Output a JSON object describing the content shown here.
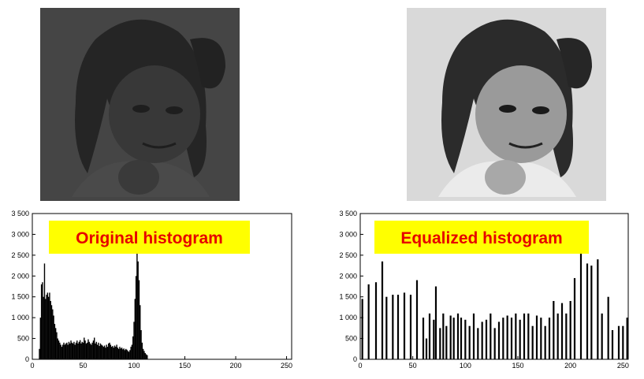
{
  "colors": {
    "background": "#ffffff",
    "title_text": "#e60000",
    "title_box": "#ffff00",
    "bars": "#000000",
    "original_photo_tone": "#3f3f3f",
    "equalized_photo_tone": "#8a8a8a"
  },
  "images": {
    "original": {
      "icon": "child-portrait-low-contrast"
    },
    "equalized": {
      "icon": "child-portrait-high-contrast"
    }
  },
  "chart_data": [
    {
      "type": "bar",
      "title": "Original histogram",
      "xlabel": "",
      "ylabel": "",
      "xlim": [
        0,
        255
      ],
      "ylim": [
        0,
        3500
      ],
      "xticks": [
        0,
        50,
        100,
        150,
        200,
        250
      ],
      "yticks": [
        0,
        500,
        1000,
        1500,
        2000,
        2500,
        3000,
        3500
      ],
      "grid": false,
      "x": [
        7,
        8,
        9,
        10,
        11,
        12,
        13,
        14,
        15,
        16,
        17,
        18,
        19,
        20,
        21,
        22,
        23,
        24,
        25,
        26,
        27,
        28,
        29,
        30,
        31,
        32,
        33,
        34,
        35,
        36,
        37,
        38,
        39,
        40,
        41,
        42,
        43,
        44,
        45,
        46,
        47,
        48,
        49,
        50,
        51,
        52,
        53,
        54,
        55,
        56,
        57,
        58,
        59,
        60,
        61,
        62,
        63,
        64,
        65,
        66,
        67,
        68,
        69,
        70,
        71,
        72,
        73,
        74,
        75,
        76,
        77,
        78,
        79,
        80,
        81,
        82,
        83,
        84,
        85,
        86,
        87,
        88,
        89,
        90,
        91,
        92,
        93,
        94,
        95,
        96,
        97,
        98,
        99,
        100,
        101,
        102,
        103,
        104,
        105,
        106,
        107,
        108,
        109,
        110,
        111,
        112,
        113
      ],
      "values": [
        250,
        1000,
        1800,
        1850,
        1500,
        2300,
        1450,
        1550,
        1600,
        1500,
        1600,
        1400,
        1300,
        1200,
        1050,
        850,
        750,
        650,
        500,
        450,
        400,
        350,
        300,
        350,
        400,
        350,
        380,
        400,
        350,
        420,
        380,
        450,
        400,
        380,
        420,
        350,
        400,
        450,
        380,
        420,
        460,
        380,
        420,
        400,
        520,
        450,
        380,
        400,
        480,
        420,
        380,
        350,
        400,
        450,
        520,
        380,
        420,
        350,
        400,
        320,
        380,
        350,
        330,
        300,
        330,
        280,
        350,
        300,
        380,
        400,
        350,
        300,
        320,
        280,
        330,
        300,
        350,
        280,
        250,
        300,
        260,
        280,
        240,
        260,
        220,
        250,
        230,
        200,
        180,
        220,
        300,
        350,
        550,
        900,
        1450,
        2000,
        2550,
        2350,
        1900,
        1300,
        700,
        400,
        250,
        200,
        150,
        120,
        100
      ]
    },
    {
      "type": "bar",
      "title": "Equalized histogram",
      "xlabel": "",
      "ylabel": "",
      "xlim": [
        0,
        255
      ],
      "ylim": [
        0,
        3500
      ],
      "xticks": [
        0,
        50,
        100,
        150,
        200,
        250
      ],
      "yticks": [
        0,
        500,
        1000,
        1500,
        2000,
        2500,
        3000,
        3500
      ],
      "grid": false,
      "x": [
        2,
        8,
        15,
        21,
        25,
        31,
        36,
        42,
        48,
        54,
        60,
        63,
        66,
        70,
        72,
        76,
        79,
        82,
        86,
        89,
        93,
        96,
        100,
        104,
        108,
        112,
        116,
        120,
        124,
        128,
        132,
        136,
        140,
        144,
        148,
        152,
        156,
        160,
        164,
        168,
        172,
        176,
        180,
        184,
        188,
        192,
        196,
        200,
        204,
        210,
        216,
        220,
        226,
        230,
        236,
        240,
        246,
        250,
        254
      ],
      "values": [
        1450,
        1800,
        1850,
        2350,
        1500,
        1550,
        1550,
        1600,
        1550,
        1900,
        1000,
        500,
        1100,
        950,
        1750,
        750,
        1100,
        800,
        1050,
        1000,
        1100,
        1000,
        950,
        800,
        1100,
        750,
        900,
        950,
        1100,
        750,
        900,
        1000,
        1050,
        1000,
        1100,
        950,
        1100,
        1100,
        800,
        1050,
        1000,
        800,
        1000,
        1400,
        1100,
        1350,
        1100,
        1400,
        1950,
        2550,
        2300,
        2250,
        2400,
        1100,
        1500,
        700,
        800,
        800,
        1000
      ]
    }
  ]
}
